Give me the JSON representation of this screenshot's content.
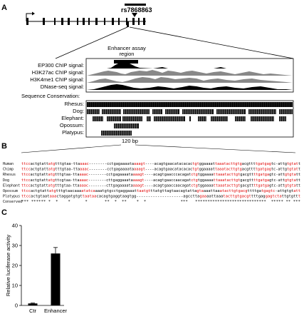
{
  "panel_a": {
    "label": "A",
    "snp_label": "rs7868863",
    "enhancer_label_line1": "Enhancer assay",
    "enhancer_label_line2": "region",
    "tracks": [
      "EP300 ChIP signal:",
      "H3K27ac ChIP signal:",
      "H3K4me1 ChIP signal:",
      "DNase-seq signal:"
    ],
    "conservation_title": "Sequence Conservation:",
    "species": [
      "Rhesus:",
      "Dog:",
      "Elephant:",
      "Opossum:",
      "Platypus:"
    ],
    "scale_label": "120 bp"
  },
  "panel_b": {
    "label": "B",
    "rows": [
      {
        "name": "Human",
        "seq": "ttccactgtattatgtttgtaa-ttaaaac--------cctgagaaaataaaagt----acagtgaacatacacactgtggaaaattaaatacttgtgacgttttgatgagtc-attgtgtatt"
      },
      {
        "name": "Chimp",
        "seq": "ttccactgtattatgtttgtaa-ttaaaac--------cctgagaaaataaaagt----acagtgaacatacacactgtggaaaattaaatacttgtgacgttttgatgagtc-attgtgtatt"
      },
      {
        "name": "Rhesus",
        "seq": "ttccactgtattatgtttgtaa-ttaaaac--------cctgagaaaataaaagt----acagtgaacccacagatctgtggaaaattaaatacttgtgacgttttgatgagtc-attgtgtatt"
      },
      {
        "name": "Dog",
        "seq": "ttccactgtattatgttcgtaa-ttaaaac--------cttgaggaaataaaagt----acagtgaaccaacagatctgtggaaaattaaatacttgtgacgttttgatgagtc-attgtgtatt"
      },
      {
        "name": "Elephant",
        "seq": "ttccactgtattatgtttgtaa-ttaaaac--------cttgagaaaataaaagt----acagtgaaccaacagatctgtggaaaattaaatacttgtgacgttttgatgagtc-attgtgtatt"
      },
      {
        "name": "Opossum",
        "seq": "ttccactgtattatgtttgtaacaaaatatcaaaatgtgcctgaggaaattaatgtttatgttagtaacagtattagtaaaattaaatacttgtgacgttttgatgagtc-attgtgtatt"
      },
      {
        "name": "Platypus",
        "seq": "ttccactgtaataaactaggatgtgttaataacacagtgaggtaagtgg--------------------agccttagaaaattaaatacttgtgacgttttgaggagtctattgtgttt"
      },
      {
        "name": "Conserved",
        "seq": "*** ****** *  *    *      *       **  *  **    *  *              ***   *****************************  ***** ** ***"
      }
    ]
  },
  "panel_c": {
    "label": "C",
    "chart_data": {
      "type": "bar",
      "categories": [
        "Ctr",
        "Enhancer"
      ],
      "values": [
        1,
        26
      ],
      "errors": [
        0.2,
        3
      ],
      "title": "",
      "xlabel": "",
      "ylabel": "Relative luciferase activity",
      "ylim": [
        0,
        40
      ],
      "yticks": [
        0,
        10,
        20,
        30,
        40
      ]
    }
  }
}
